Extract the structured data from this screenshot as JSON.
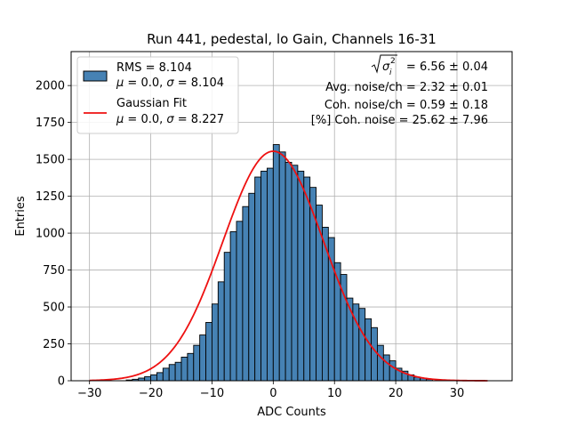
{
  "chart_data": {
    "type": "bar",
    "title": "Run 441, pedestal, lo Gain, Channels 16-31",
    "xlabel": "ADC Counts",
    "ylabel": "Entries",
    "xlim": [
      -33,
      39
    ],
    "ylim": [
      0,
      2230
    ],
    "xticks": [
      -30,
      -20,
      -10,
      0,
      10,
      20,
      30
    ],
    "yticks": [
      0,
      250,
      500,
      750,
      1000,
      1250,
      1500,
      1750,
      2000
    ],
    "grid": true,
    "legend_position": "top-left",
    "bin_width": 1,
    "histogram": {
      "name": "RMS = 8.104",
      "stats": "μ = 0.0, σ = 8.104",
      "color": "#4682b4",
      "edgecolor": "#000000",
      "bin_left_edges": [
        -24,
        -23,
        -22,
        -21,
        -20,
        -19,
        -18,
        -17,
        -16,
        -15,
        -14,
        -13,
        -12,
        -11,
        -10,
        -9,
        -8,
        -7,
        -6,
        -5,
        -4,
        -3,
        -2,
        -1,
        0,
        1,
        2,
        3,
        4,
        5,
        6,
        7,
        8,
        9,
        10,
        11,
        12,
        13,
        14,
        15,
        16,
        17,
        18,
        19,
        20,
        21,
        22,
        23,
        24,
        25
      ],
      "values": [
        5,
        10,
        18,
        28,
        40,
        55,
        85,
        110,
        125,
        160,
        185,
        240,
        310,
        395,
        520,
        670,
        870,
        1010,
        1080,
        1180,
        1270,
        1380,
        1420,
        1440,
        1600,
        1550,
        1480,
        1460,
        1420,
        1380,
        1310,
        1190,
        1040,
        970,
        800,
        720,
        560,
        520,
        490,
        420,
        360,
        240,
        175,
        135,
        85,
        65,
        40,
        25,
        18,
        10
      ]
    },
    "fit": {
      "name": "Gaussian Fit",
      "stats": "μ = 0.0, σ = 8.227",
      "color": "#ee1111",
      "mu": 0.0,
      "sigma": 8.227,
      "peak": 1555,
      "x_range": [
        -30,
        35
      ]
    },
    "annotations": [
      {
        "prefix": "",
        "value": " = 6.56 ± 0.04",
        "has_sqrt": true,
        "sqrt_symbol": "σ",
        "sqrt_sub": "i",
        "sqrt_sup": "2"
      },
      {
        "prefix": "",
        "value": "Avg. noise/ch = 2.32 ± 0.01",
        "has_sqrt": false
      },
      {
        "prefix": "",
        "value": "Coh. noise/ch = 0.59 ± 0.18",
        "has_sqrt": false
      },
      {
        "prefix": "",
        "value": "[%] Coh. noise = 25.62 ± 7.96",
        "has_sqrt": false
      }
    ]
  }
}
